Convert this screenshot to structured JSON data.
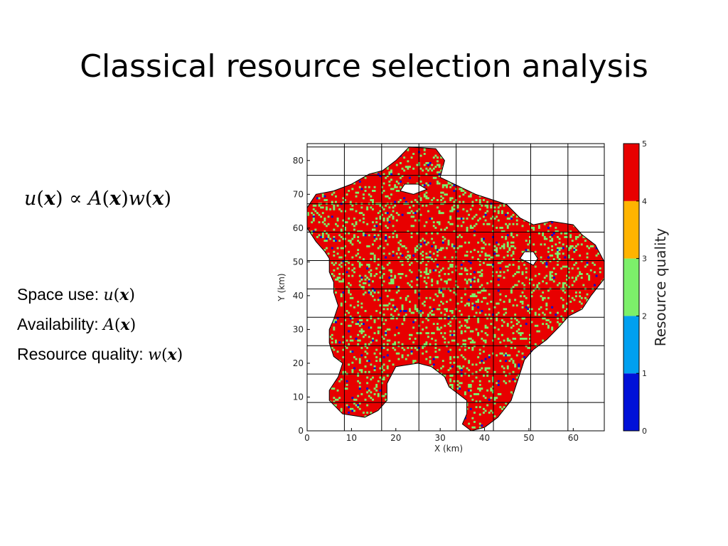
{
  "slide": {
    "title": "Classical resource selection analysis"
  },
  "equation": {
    "lhs_fn": "u",
    "x": "x",
    "proportional": "∝",
    "rhs_fn1": "A",
    "rhs_fn2": "w"
  },
  "definitions": [
    {
      "label": "Space use: ",
      "fn": "u",
      "x": "x"
    },
    {
      "label": "Availability: ",
      "fn": "A",
      "x": "x"
    },
    {
      "label": "Resource quality: ",
      "fn": "w",
      "x": "x"
    }
  ],
  "chart_data": {
    "type": "heatmap",
    "title": "",
    "xlabel": "X (km)",
    "ylabel": "Y (km)",
    "xlim": [
      0,
      67
    ],
    "ylim": [
      0,
      85
    ],
    "xticks": [
      0,
      10,
      20,
      30,
      40,
      50,
      60
    ],
    "yticks": [
      0,
      10,
      20,
      30,
      40,
      50,
      60,
      70,
      80
    ],
    "grid": true,
    "grid_spacing_km": 8.4,
    "colorbar": {
      "label": "Resource quality",
      "min": 0,
      "max": 5,
      "ticks": [
        0,
        1,
        2,
        3,
        4,
        5
      ],
      "bins": [
        {
          "from": 0,
          "to": 1,
          "color": "#0011d8"
        },
        {
          "from": 1,
          "to": 2,
          "color": "#00a0f0"
        },
        {
          "from": 2,
          "to": 3,
          "color": "#7cf06a"
        },
        {
          "from": 3,
          "to": 4,
          "color": "#ffb400"
        },
        {
          "from": 4,
          "to": 5,
          "color": "#e80000"
        }
      ]
    },
    "region_outline_xy_km": [
      [
        20,
        80
      ],
      [
        23,
        84
      ],
      [
        29,
        83.5
      ],
      [
        31,
        80
      ],
      [
        30,
        75
      ],
      [
        38,
        70
      ],
      [
        45,
        67
      ],
      [
        48,
        63
      ],
      [
        51,
        61
      ],
      [
        55,
        62
      ],
      [
        60,
        61
      ],
      [
        62,
        58
      ],
      [
        65,
        55
      ],
      [
        67,
        50
      ],
      [
        67,
        45
      ],
      [
        64,
        40
      ],
      [
        62,
        36
      ],
      [
        59,
        34
      ],
      [
        57,
        31
      ],
      [
        54,
        27
      ],
      [
        51,
        24
      ],
      [
        49,
        21
      ],
      [
        48,
        17
      ],
      [
        47,
        13
      ],
      [
        46,
        9
      ],
      [
        43,
        4
      ],
      [
        40,
        1
      ],
      [
        37,
        0
      ],
      [
        35,
        2
      ],
      [
        36,
        5
      ],
      [
        36,
        9
      ],
      [
        32,
        13
      ],
      [
        31,
        16
      ],
      [
        28,
        19
      ],
      [
        25,
        20
      ],
      [
        20,
        19
      ],
      [
        18,
        14
      ],
      [
        18,
        9
      ],
      [
        16,
        6
      ],
      [
        13,
        4
      ],
      [
        8,
        5
      ],
      [
        5,
        9
      ],
      [
        5,
        12
      ],
      [
        7,
        16
      ],
      [
        8,
        20
      ],
      [
        6,
        22
      ],
      [
        5,
        26
      ],
      [
        5,
        30
      ],
      [
        6,
        33
      ],
      [
        7,
        37
      ],
      [
        6,
        41
      ],
      [
        6,
        44
      ],
      [
        5,
        47
      ],
      [
        5,
        51
      ],
      [
        4,
        53
      ],
      [
        2,
        56
      ],
      [
        0,
        60
      ],
      [
        0,
        66
      ],
      [
        2,
        70
      ],
      [
        6,
        71
      ],
      [
        10,
        73
      ],
      [
        14,
        76
      ],
      [
        17,
        77
      ],
      [
        20,
        80
      ]
    ],
    "holes_xy_km": [
      [
        [
          21,
          71
        ],
        [
          24,
          70
        ],
        [
          27,
          71.5
        ],
        [
          25,
          73
        ],
        [
          22,
          73
        ]
      ],
      [
        [
          48,
          51
        ],
        [
          51,
          49
        ],
        [
          52,
          51
        ],
        [
          51,
          53
        ],
        [
          49,
          53
        ]
      ]
    ],
    "value_distribution": {
      "0-1": 0.05,
      "2-3": 0.25,
      "4-5": 0.7
    }
  },
  "colors": {
    "background": "#ffffff",
    "text": "#000000",
    "outline": "#000000"
  }
}
